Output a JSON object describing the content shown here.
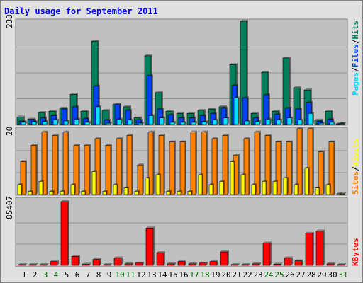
{
  "chart_data": [
    {
      "type": "bar",
      "title": "Daily usage for September 2011",
      "panel": "hits-files-pages",
      "ymax_label": "233",
      "ylim": [
        0,
        233
      ],
      "right_labels": [
        "Pages",
        "Files",
        "Hits"
      ],
      "categories": [
        "1",
        "2",
        "3",
        "4",
        "5",
        "6",
        "7",
        "8",
        "9",
        "10",
        "11",
        "12",
        "13",
        "14",
        "15",
        "16",
        "17",
        "18",
        "19",
        "20",
        "21",
        "22",
        "23",
        "24",
        "25",
        "26",
        "27",
        "28",
        "29",
        "30",
        "31"
      ],
      "series": [
        {
          "name": "Hits",
          "values": [
            17,
            12,
            27,
            30,
            37,
            68,
            30,
            188,
            32,
            45,
            40,
            15,
            155,
            72,
            30,
            25,
            25,
            32,
            35,
            40,
            135,
            233,
            25,
            118,
            30,
            150,
            83,
            78,
            10,
            30,
            0
          ]
        },
        {
          "name": "Files",
          "values": [
            7,
            10,
            15,
            20,
            35,
            40,
            13,
            87,
            10,
            45,
            32,
            10,
            110,
            35,
            22,
            15,
            15,
            20,
            25,
            37,
            88,
            60,
            15,
            67,
            23,
            37,
            35,
            50,
            7,
            12,
            0
          ]
        },
        {
          "name": "Pages",
          "values": [
            5,
            7,
            7,
            10,
            8,
            12,
            5,
            40,
            3,
            12,
            10,
            3,
            20,
            15,
            5,
            5,
            5,
            7,
            10,
            15,
            60,
            8,
            7,
            12,
            10,
            15,
            10,
            25,
            3,
            5,
            0
          ]
        }
      ]
    },
    {
      "type": "bar",
      "panel": "visits-sites",
      "ymax_label": "20",
      "ylim": [
        0,
        20
      ],
      "right_labels": [
        "Sites",
        "Visits"
      ],
      "categories": [
        "1",
        "2",
        "3",
        "4",
        "5",
        "6",
        "7",
        "8",
        "9",
        "10",
        "11",
        "12",
        "13",
        "14",
        "15",
        "16",
        "17",
        "18",
        "19",
        "20",
        "21",
        "22",
        "23",
        "24",
        "25",
        "26",
        "27",
        "28",
        "29",
        "30",
        "31"
      ],
      "series": [
        {
          "name": "Visits",
          "values": [
            10,
            15,
            19,
            18,
            19,
            15,
            15,
            17,
            15,
            17,
            18,
            9,
            19,
            18,
            16,
            16,
            19,
            19,
            17,
            18,
            12,
            17,
            19,
            18,
            16,
            16,
            20,
            20,
            13,
            16,
            0
          ]
        },
        {
          "name": "Sites",
          "values": [
            3,
            1,
            4,
            1,
            1,
            3,
            1,
            7,
            1,
            3,
            2,
            1,
            5,
            6,
            1,
            1,
            1,
            6,
            3,
            4,
            10,
            6,
            3,
            4,
            4,
            5,
            3,
            8,
            2,
            3,
            0
          ]
        }
      ]
    },
    {
      "type": "bar",
      "panel": "kbytes",
      "ymax_label": "85407",
      "ylim": [
        0,
        85407
      ],
      "right_labels": [
        "KBytes"
      ],
      "categories": [
        "1",
        "2",
        "3",
        "4",
        "5",
        "6",
        "7",
        "8",
        "9",
        "10",
        "11",
        "12",
        "13",
        "14",
        "15",
        "16",
        "17",
        "18",
        "19",
        "20",
        "21",
        "22",
        "23",
        "24",
        "25",
        "26",
        "27",
        "28",
        "29",
        "30",
        "31"
      ],
      "series": [
        {
          "name": "KBytes",
          "values": [
            1000,
            1000,
            1000,
            5000,
            85407,
            12000,
            1500,
            8000,
            1000,
            10000,
            2000,
            3000,
            50000,
            17000,
            2000,
            5000,
            2000,
            3000,
            5000,
            18000,
            1000,
            1000,
            2000,
            30000,
            1500,
            10000,
            6000,
            43000,
            46000,
            2000,
            1000
          ]
        }
      ]
    }
  ],
  "day_label_colors": [
    "#000000",
    "#000000",
    "#006400",
    "#006400",
    "#000000",
    "#000000",
    "#000000",
    "#000000",
    "#000000",
    "#006400",
    "#006400",
    "#000000",
    "#000000",
    "#000000",
    "#000000",
    "#000000",
    "#006400",
    "#006400",
    "#000000",
    "#000000",
    "#000000",
    "#000000",
    "#000000",
    "#006400",
    "#006400",
    "#000000",
    "#000000",
    "#000000",
    "#000000",
    "#000000",
    "#006400"
  ],
  "colors": {
    "hits": "#00805c",
    "files": "#0040ff",
    "pages": "#00e0ff",
    "visits": "#ff8000",
    "sites": "#ffff00",
    "kbytes": "#ff0000",
    "title": "#0000ff",
    "panel_bg": "#c0c0c0",
    "frame_bg": "#e0e0e0"
  }
}
